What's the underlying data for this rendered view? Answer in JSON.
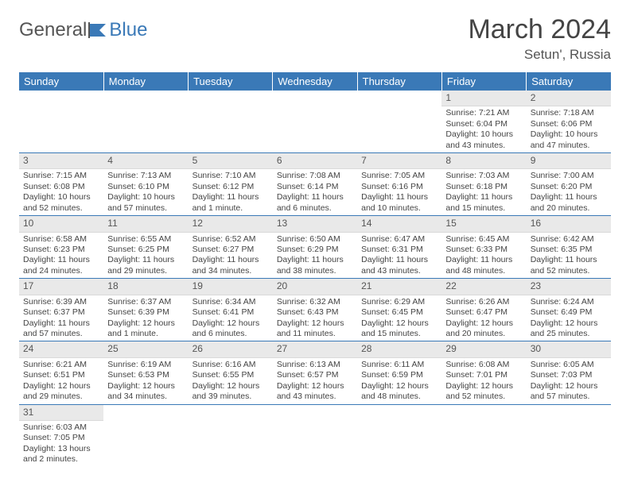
{
  "brand": {
    "part1": "General",
    "part2": "Blue"
  },
  "title": "March 2024",
  "location": "Setun', Russia",
  "colors": {
    "header_bg": "#3a79b7",
    "header_fg": "#ffffff",
    "daynum_bg": "#e9e9e9",
    "row_divider": "#3a79b7",
    "text": "#444444"
  },
  "weekdays": [
    "Sunday",
    "Monday",
    "Tuesday",
    "Wednesday",
    "Thursday",
    "Friday",
    "Saturday"
  ],
  "weeks": [
    [
      null,
      null,
      null,
      null,
      null,
      {
        "n": "1",
        "sr": "Sunrise: 7:21 AM",
        "ss": "Sunset: 6:04 PM",
        "d1": "Daylight: 10 hours",
        "d2": "and 43 minutes."
      },
      {
        "n": "2",
        "sr": "Sunrise: 7:18 AM",
        "ss": "Sunset: 6:06 PM",
        "d1": "Daylight: 10 hours",
        "d2": "and 47 minutes."
      }
    ],
    [
      {
        "n": "3",
        "sr": "Sunrise: 7:15 AM",
        "ss": "Sunset: 6:08 PM",
        "d1": "Daylight: 10 hours",
        "d2": "and 52 minutes."
      },
      {
        "n": "4",
        "sr": "Sunrise: 7:13 AM",
        "ss": "Sunset: 6:10 PM",
        "d1": "Daylight: 10 hours",
        "d2": "and 57 minutes."
      },
      {
        "n": "5",
        "sr": "Sunrise: 7:10 AM",
        "ss": "Sunset: 6:12 PM",
        "d1": "Daylight: 11 hours",
        "d2": "and 1 minute."
      },
      {
        "n": "6",
        "sr": "Sunrise: 7:08 AM",
        "ss": "Sunset: 6:14 PM",
        "d1": "Daylight: 11 hours",
        "d2": "and 6 minutes."
      },
      {
        "n": "7",
        "sr": "Sunrise: 7:05 AM",
        "ss": "Sunset: 6:16 PM",
        "d1": "Daylight: 11 hours",
        "d2": "and 10 minutes."
      },
      {
        "n": "8",
        "sr": "Sunrise: 7:03 AM",
        "ss": "Sunset: 6:18 PM",
        "d1": "Daylight: 11 hours",
        "d2": "and 15 minutes."
      },
      {
        "n": "9",
        "sr": "Sunrise: 7:00 AM",
        "ss": "Sunset: 6:20 PM",
        "d1": "Daylight: 11 hours",
        "d2": "and 20 minutes."
      }
    ],
    [
      {
        "n": "10",
        "sr": "Sunrise: 6:58 AM",
        "ss": "Sunset: 6:23 PM",
        "d1": "Daylight: 11 hours",
        "d2": "and 24 minutes."
      },
      {
        "n": "11",
        "sr": "Sunrise: 6:55 AM",
        "ss": "Sunset: 6:25 PM",
        "d1": "Daylight: 11 hours",
        "d2": "and 29 minutes."
      },
      {
        "n": "12",
        "sr": "Sunrise: 6:52 AM",
        "ss": "Sunset: 6:27 PM",
        "d1": "Daylight: 11 hours",
        "d2": "and 34 minutes."
      },
      {
        "n": "13",
        "sr": "Sunrise: 6:50 AM",
        "ss": "Sunset: 6:29 PM",
        "d1": "Daylight: 11 hours",
        "d2": "and 38 minutes."
      },
      {
        "n": "14",
        "sr": "Sunrise: 6:47 AM",
        "ss": "Sunset: 6:31 PM",
        "d1": "Daylight: 11 hours",
        "d2": "and 43 minutes."
      },
      {
        "n": "15",
        "sr": "Sunrise: 6:45 AM",
        "ss": "Sunset: 6:33 PM",
        "d1": "Daylight: 11 hours",
        "d2": "and 48 minutes."
      },
      {
        "n": "16",
        "sr": "Sunrise: 6:42 AM",
        "ss": "Sunset: 6:35 PM",
        "d1": "Daylight: 11 hours",
        "d2": "and 52 minutes."
      }
    ],
    [
      {
        "n": "17",
        "sr": "Sunrise: 6:39 AM",
        "ss": "Sunset: 6:37 PM",
        "d1": "Daylight: 11 hours",
        "d2": "and 57 minutes."
      },
      {
        "n": "18",
        "sr": "Sunrise: 6:37 AM",
        "ss": "Sunset: 6:39 PM",
        "d1": "Daylight: 12 hours",
        "d2": "and 1 minute."
      },
      {
        "n": "19",
        "sr": "Sunrise: 6:34 AM",
        "ss": "Sunset: 6:41 PM",
        "d1": "Daylight: 12 hours",
        "d2": "and 6 minutes."
      },
      {
        "n": "20",
        "sr": "Sunrise: 6:32 AM",
        "ss": "Sunset: 6:43 PM",
        "d1": "Daylight: 12 hours",
        "d2": "and 11 minutes."
      },
      {
        "n": "21",
        "sr": "Sunrise: 6:29 AM",
        "ss": "Sunset: 6:45 PM",
        "d1": "Daylight: 12 hours",
        "d2": "and 15 minutes."
      },
      {
        "n": "22",
        "sr": "Sunrise: 6:26 AM",
        "ss": "Sunset: 6:47 PM",
        "d1": "Daylight: 12 hours",
        "d2": "and 20 minutes."
      },
      {
        "n": "23",
        "sr": "Sunrise: 6:24 AM",
        "ss": "Sunset: 6:49 PM",
        "d1": "Daylight: 12 hours",
        "d2": "and 25 minutes."
      }
    ],
    [
      {
        "n": "24",
        "sr": "Sunrise: 6:21 AM",
        "ss": "Sunset: 6:51 PM",
        "d1": "Daylight: 12 hours",
        "d2": "and 29 minutes."
      },
      {
        "n": "25",
        "sr": "Sunrise: 6:19 AM",
        "ss": "Sunset: 6:53 PM",
        "d1": "Daylight: 12 hours",
        "d2": "and 34 minutes."
      },
      {
        "n": "26",
        "sr": "Sunrise: 6:16 AM",
        "ss": "Sunset: 6:55 PM",
        "d1": "Daylight: 12 hours",
        "d2": "and 39 minutes."
      },
      {
        "n": "27",
        "sr": "Sunrise: 6:13 AM",
        "ss": "Sunset: 6:57 PM",
        "d1": "Daylight: 12 hours",
        "d2": "and 43 minutes."
      },
      {
        "n": "28",
        "sr": "Sunrise: 6:11 AM",
        "ss": "Sunset: 6:59 PM",
        "d1": "Daylight: 12 hours",
        "d2": "and 48 minutes."
      },
      {
        "n": "29",
        "sr": "Sunrise: 6:08 AM",
        "ss": "Sunset: 7:01 PM",
        "d1": "Daylight: 12 hours",
        "d2": "and 52 minutes."
      },
      {
        "n": "30",
        "sr": "Sunrise: 6:05 AM",
        "ss": "Sunset: 7:03 PM",
        "d1": "Daylight: 12 hours",
        "d2": "and 57 minutes."
      }
    ],
    [
      {
        "n": "31",
        "sr": "Sunrise: 6:03 AM",
        "ss": "Sunset: 7:05 PM",
        "d1": "Daylight: 13 hours",
        "d2": "and 2 minutes."
      },
      null,
      null,
      null,
      null,
      null,
      null
    ]
  ]
}
